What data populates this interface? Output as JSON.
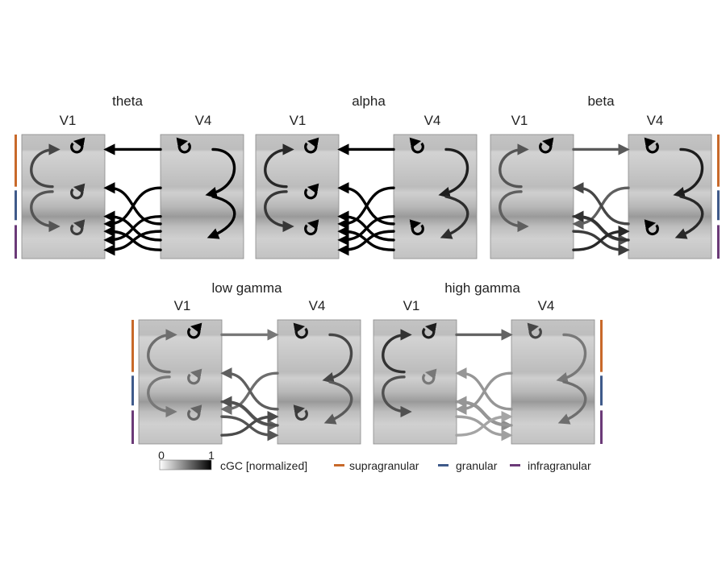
{
  "bands": [
    {
      "id": "theta",
      "title": "theta",
      "left_label": "V1",
      "right_label": "V4"
    },
    {
      "id": "alpha",
      "title": "alpha",
      "left_label": "V1",
      "right_label": "V4"
    },
    {
      "id": "beta",
      "title": "beta",
      "left_label": "V1",
      "right_label": "V4"
    },
    {
      "id": "low-gamma",
      "title": "low gamma",
      "left_label": "V1",
      "right_label": "V4"
    },
    {
      "id": "high-gamma",
      "title": "high gamma",
      "left_label": "V1",
      "right_label": "V4"
    }
  ],
  "legend": {
    "scale_min": "0",
    "scale_max": "1",
    "scale_label": "cGC [normalized]",
    "layers": [
      {
        "label": "supragranular",
        "color": "#c8692a"
      },
      {
        "label": "granular",
        "color": "#3f5a8a"
      },
      {
        "label": "infragranular",
        "color": "#6b3a78"
      }
    ]
  },
  "colors": {
    "box_fill": "#c6c6c6",
    "box_stroke": "#8a8a8a"
  }
}
